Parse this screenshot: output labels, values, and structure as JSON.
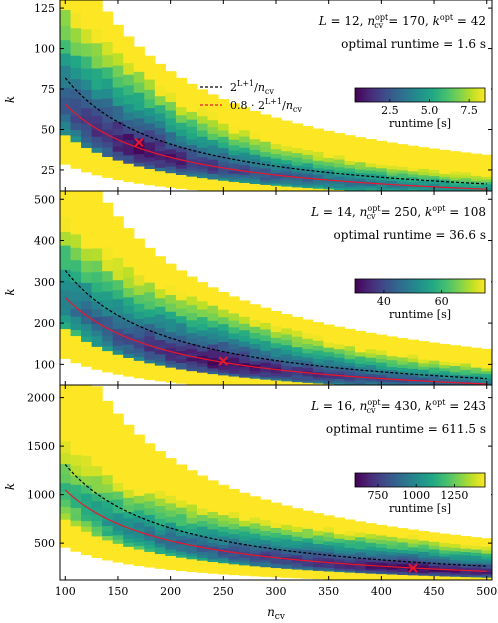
{
  "chart_data": [
    {
      "type": "heatmap",
      "panel": 1,
      "xlabel": "",
      "ylabel": "k",
      "xlim": [
        95,
        505
      ],
      "ylim": [
        12,
        130
      ],
      "yticks": [
        25,
        50,
        75,
        100,
        125
      ],
      "annotation_line1": "L = 12, n_cv^opt = 170, k^opt = 42",
      "annotation_line2": "optimal runtime = 1.6 s",
      "optimum": {
        "n_cv": 170,
        "k": 42
      },
      "L": 12,
      "runtime_min": 0.3,
      "runtime_max": 8.5,
      "colorbar": {
        "label": "runtime [s]",
        "ticks": [
          2.5,
          5.0,
          7.5
        ],
        "vmin": 0.3,
        "vmax": 8.5
      },
      "legend": {
        "placement": "center-right",
        "entries": [
          {
            "label": "2^{L+1}/n_cv",
            "color": "#000000",
            "style": "dashed",
            "factor": 1.0
          },
          {
            "label": "0.8 · 2^{L+1}/n_cv",
            "color": "#e8182c",
            "style": "solid",
            "factor": 0.8
          }
        ]
      },
      "series": [
        {
          "name": "2^{L+1}/n_cv",
          "x": [
            100,
            150,
            200,
            250,
            300,
            350,
            400,
            450,
            500
          ],
          "values": [
            81.9,
            54.6,
            41.0,
            32.8,
            27.3,
            23.4,
            20.5,
            18.2,
            16.4
          ]
        },
        {
          "name": "0.8 · 2^{L+1}/n_cv",
          "x": [
            100,
            150,
            200,
            250,
            300,
            350,
            400,
            450,
            500
          ],
          "values": [
            65.5,
            43.7,
            32.8,
            26.2,
            21.8,
            18.7,
            16.4,
            14.6,
            13.1
          ]
        }
      ]
    },
    {
      "type": "heatmap",
      "panel": 2,
      "xlabel": "",
      "ylabel": "k",
      "xlim": [
        95,
        505
      ],
      "ylim": [
        50,
        520
      ],
      "yticks": [
        100,
        200,
        300,
        400,
        500
      ],
      "annotation_line1": "L = 14, n_cv^opt = 250, k^opt = 108",
      "annotation_line2": "optimal runtime = 36.6 s",
      "optimum": {
        "n_cv": 250,
        "k": 108
      },
      "L": 14,
      "runtime_min": 30,
      "runtime_max": 75,
      "colorbar": {
        "label": "runtime [s]",
        "ticks": [
          40,
          60
        ],
        "vmin": 30,
        "vmax": 75
      },
      "series": [
        {
          "name": "2^{L+1}/n_cv",
          "x": [
            100,
            150,
            200,
            250,
            300,
            350,
            400,
            450,
            500
          ],
          "values": [
            327.7,
            218.5,
            163.8,
            131.1,
            109.2,
            93.6,
            81.9,
            72.8,
            65.5
          ]
        },
        {
          "name": "0.8 · 2^{L+1}/n_cv",
          "x": [
            100,
            150,
            200,
            250,
            300,
            350,
            400,
            450,
            500
          ],
          "values": [
            262.1,
            174.8,
            131.1,
            104.9,
            87.4,
            74.9,
            65.5,
            58.3,
            52.4
          ]
        }
      ]
    },
    {
      "type": "heatmap",
      "panel": 3,
      "xlabel": "n_cv",
      "ylabel": "k",
      "xlim": [
        95,
        505
      ],
      "ylim": [
        120,
        2130
      ],
      "yticks": [
        500,
        1000,
        1500,
        2000
      ],
      "xticks": [
        100,
        150,
        200,
        250,
        300,
        350,
        400,
        450,
        500
      ],
      "annotation_line1": "L = 16, n_cv^opt = 430, k^opt = 243",
      "annotation_line2": "optimal runtime = 611.5 s",
      "optimum": {
        "n_cv": 430,
        "k": 243
      },
      "L": 16,
      "runtime_min": 600,
      "runtime_max": 1450,
      "colorbar": {
        "label": "runtime [s]",
        "ticks": [
          750,
          1000,
          1250
        ],
        "vmin": 600,
        "vmax": 1450
      },
      "series": [
        {
          "name": "2^{L+1}/n_cv",
          "x": [
            100,
            150,
            200,
            250,
            300,
            350,
            400,
            450,
            500
          ],
          "values": [
            1310.7,
            873.8,
            655.4,
            524.3,
            436.9,
            374.5,
            327.7,
            291.3,
            262.1
          ]
        },
        {
          "name": "0.8 · 2^{L+1}/n_cv",
          "x": [
            100,
            150,
            200,
            250,
            300,
            350,
            400,
            450,
            500
          ],
          "values": [
            1048.6,
            699.1,
            524.3,
            419.4,
            349.5,
            299.6,
            262.1,
            233.0,
            209.7
          ]
        }
      ]
    }
  ]
}
